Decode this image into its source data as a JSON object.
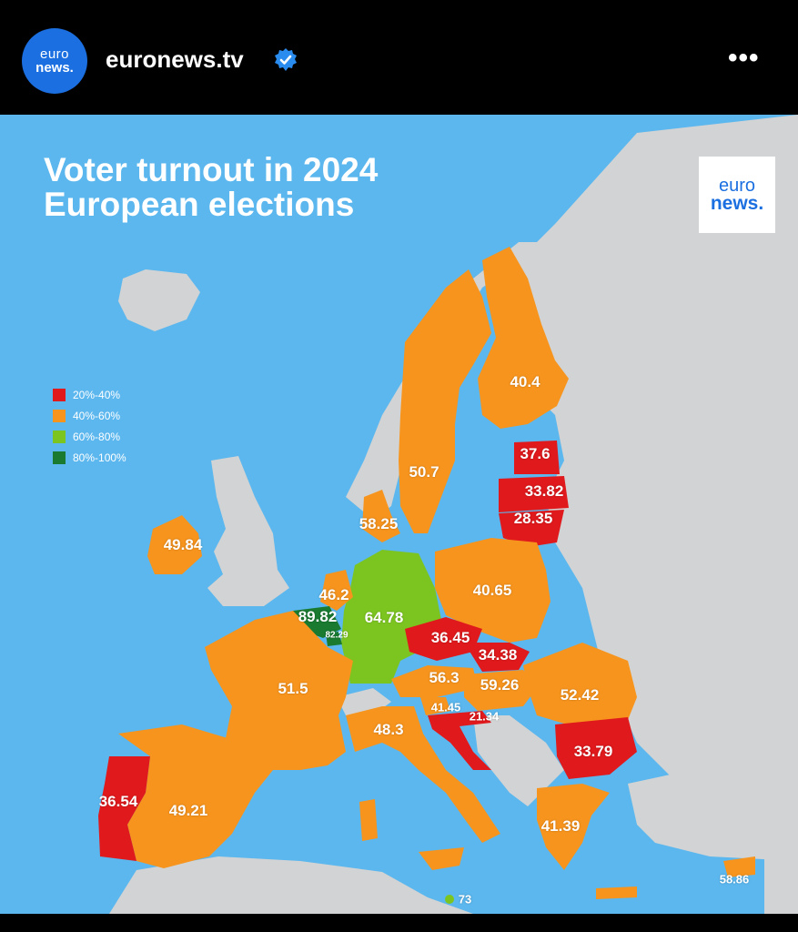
{
  "header": {
    "avatar": {
      "line1": "euro",
      "line2": "news."
    },
    "handle": "euronews.tv",
    "verified_icon": "verified-badge-icon",
    "more_icon": "more-dots-icon",
    "more_label": "•••"
  },
  "post": {
    "title_line1": "Voter turnout in 2024",
    "title_line2": "European elections",
    "logo": {
      "line1": "euro",
      "line2": "news."
    }
  },
  "legend": [
    {
      "label": "20%-40%",
      "color": "#e0191c"
    },
    {
      "label": "40%-60%",
      "color": "#f7941d"
    },
    {
      "label": "60%-80%",
      "color": "#7cc520"
    },
    {
      "label": "80%-100%",
      "color": "#197a30"
    }
  ],
  "colors": {
    "sea": "#5bb7ee",
    "non_eu_land": "#d1d3d4",
    "band_20_40": "#e0191c",
    "band_40_60": "#f7941d",
    "band_60_80": "#7cc520",
    "band_80_100": "#197a30"
  },
  "turnout_labels": [
    {
      "value": "40.4",
      "band": "40-60"
    },
    {
      "value": "37.6",
      "band": "20-40"
    },
    {
      "value": "33.82",
      "band": "20-40"
    },
    {
      "value": "28.35",
      "band": "20-40"
    },
    {
      "value": "50.7",
      "band": "40-60"
    },
    {
      "value": "58.25",
      "band": "40-60"
    },
    {
      "value": "49.84",
      "band": "40-60"
    },
    {
      "value": "40.65",
      "band": "40-60"
    },
    {
      "value": "46.2",
      "band": "40-60"
    },
    {
      "value": "89.82",
      "band": "80-100"
    },
    {
      "value": "82.29",
      "band": "80-100"
    },
    {
      "value": "64.78",
      "band": "60-80"
    },
    {
      "value": "36.45",
      "band": "20-40"
    },
    {
      "value": "34.38",
      "band": "20-40"
    },
    {
      "value": "56.3",
      "band": "40-60"
    },
    {
      "value": "59.26",
      "band": "40-60"
    },
    {
      "value": "52.42",
      "band": "40-60"
    },
    {
      "value": "51.5",
      "band": "40-60"
    },
    {
      "value": "41.45",
      "band": "40-60"
    },
    {
      "value": "21.34",
      "band": "20-40"
    },
    {
      "value": "48.3",
      "band": "40-60"
    },
    {
      "value": "33.79",
      "band": "20-40"
    },
    {
      "value": "36.54",
      "band": "20-40"
    },
    {
      "value": "49.21",
      "band": "40-60"
    },
    {
      "value": "41.39",
      "band": "40-60"
    },
    {
      "value": "58.86",
      "band": "40-60"
    },
    {
      "value": "73",
      "band": "60-80"
    }
  ]
}
